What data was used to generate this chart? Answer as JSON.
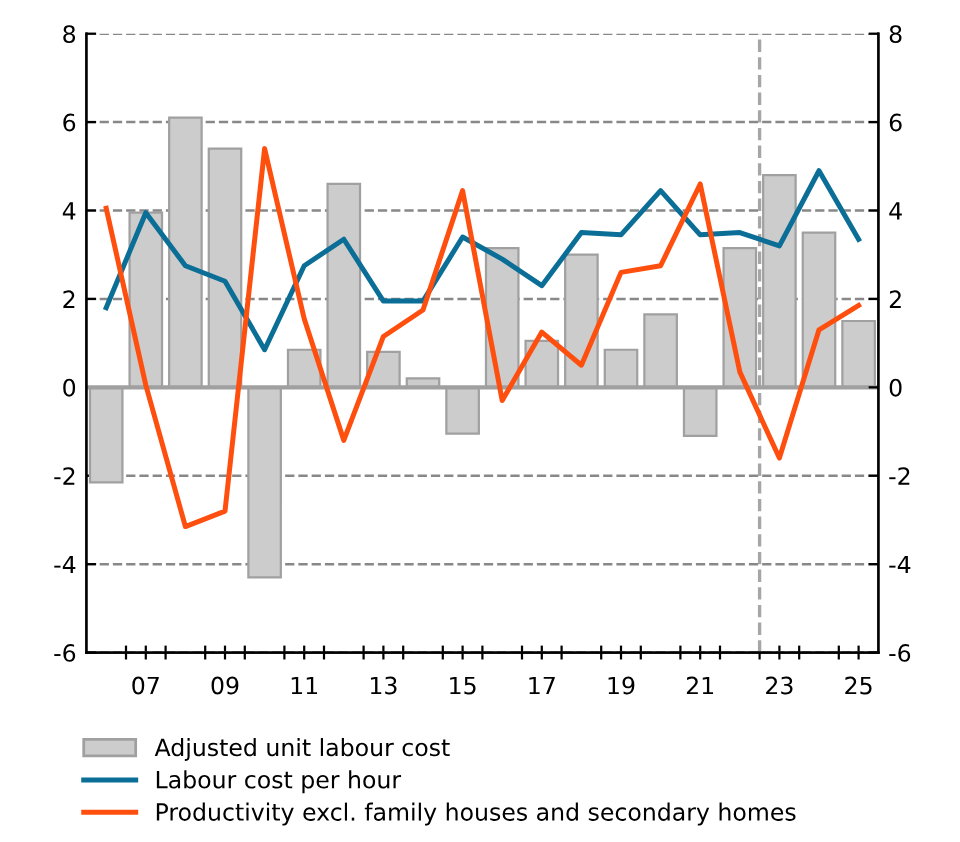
{
  "chart_data": {
    "type": "bar",
    "x": [
      2006,
      2007,
      2008,
      2009,
      2010,
      2011,
      2012,
      2013,
      2014,
      2015,
      2016,
      2017,
      2018,
      2019,
      2020,
      2021,
      2022,
      2023,
      2024,
      2025
    ],
    "xlim": [
      2005.5,
      2025.5
    ],
    "xticks": [
      {
        "value": 2006.5,
        "label": null
      },
      {
        "value": 2007,
        "label": "07"
      },
      {
        "value": 2007.5,
        "label": null
      },
      {
        "value": 2008.5,
        "label": null
      },
      {
        "value": 2009,
        "label": "09"
      },
      {
        "value": 2009.5,
        "label": null
      },
      {
        "value": 2010.5,
        "label": null
      },
      {
        "value": 2011,
        "label": "11"
      },
      {
        "value": 2011.5,
        "label": null
      },
      {
        "value": 2012.5,
        "label": null
      },
      {
        "value": 2013,
        "label": "13"
      },
      {
        "value": 2013.5,
        "label": null
      },
      {
        "value": 2014.5,
        "label": null
      },
      {
        "value": 2015,
        "label": "15"
      },
      {
        "value": 2015.5,
        "label": null
      },
      {
        "value": 2016.5,
        "label": null
      },
      {
        "value": 2017,
        "label": "17"
      },
      {
        "value": 2017.5,
        "label": null
      },
      {
        "value": 2018.5,
        "label": null
      },
      {
        "value": 2019,
        "label": "19"
      },
      {
        "value": 2019.5,
        "label": null
      },
      {
        "value": 2020.5,
        "label": null
      },
      {
        "value": 2021,
        "label": "21"
      },
      {
        "value": 2021.5,
        "label": null
      },
      {
        "value": 2022.5,
        "label": null
      },
      {
        "value": 2023,
        "label": "23"
      },
      {
        "value": 2023.5,
        "label": null
      },
      {
        "value": 2024.5,
        "label": null
      },
      {
        "value": 2025,
        "label": "25"
      }
    ],
    "ylim": [
      -6,
      8
    ],
    "yticks": [
      -6,
      -4,
      -2,
      0,
      2,
      4,
      6,
      8
    ],
    "y2lim": [
      -6,
      8
    ],
    "y2ticks": [
      -6,
      -4,
      -2,
      0,
      2,
      4,
      6,
      8
    ],
    "grid": "y",
    "legend": "bottom",
    "ref_lines": [
      {
        "axis": "x",
        "value": 2022.5,
        "color": "#a6a6a6",
        "line_style": "dashed"
      }
    ],
    "series": [
      {
        "name": "Adjusted unit labour cost",
        "color": "#cccccc",
        "values": [
          -2.15,
          3.95,
          6.1,
          5.4,
          -4.3,
          0.85,
          4.6,
          0.8,
          0.2,
          -1.05,
          3.15,
          1.05,
          3.0,
          0.85,
          1.65,
          -1.1,
          3.15,
          4.8,
          3.5,
          1.5
        ]
      },
      {
        "name": "Labour cost per hour",
        "type": "line",
        "color": "#0b6e96",
        "values": [
          1.8,
          3.95,
          2.75,
          2.4,
          0.85,
          2.75,
          3.35,
          1.95,
          1.95,
          3.4,
          2.9,
          2.3,
          3.5,
          3.45,
          4.45,
          3.45,
          3.5,
          3.2,
          4.9,
          3.35
        ]
      },
      {
        "name": "Productivity excl. family houses and secondary homes",
        "type": "line",
        "color": "#ff4f0f",
        "values": [
          4.05,
          0.05,
          -3.15,
          -2.8,
          5.4,
          1.55,
          -1.2,
          1.15,
          1.75,
          4.45,
          -0.3,
          1.25,
          0.5,
          2.6,
          2.75,
          4.6,
          0.35,
          -1.6,
          1.3,
          1.85
        ]
      }
    ]
  }
}
